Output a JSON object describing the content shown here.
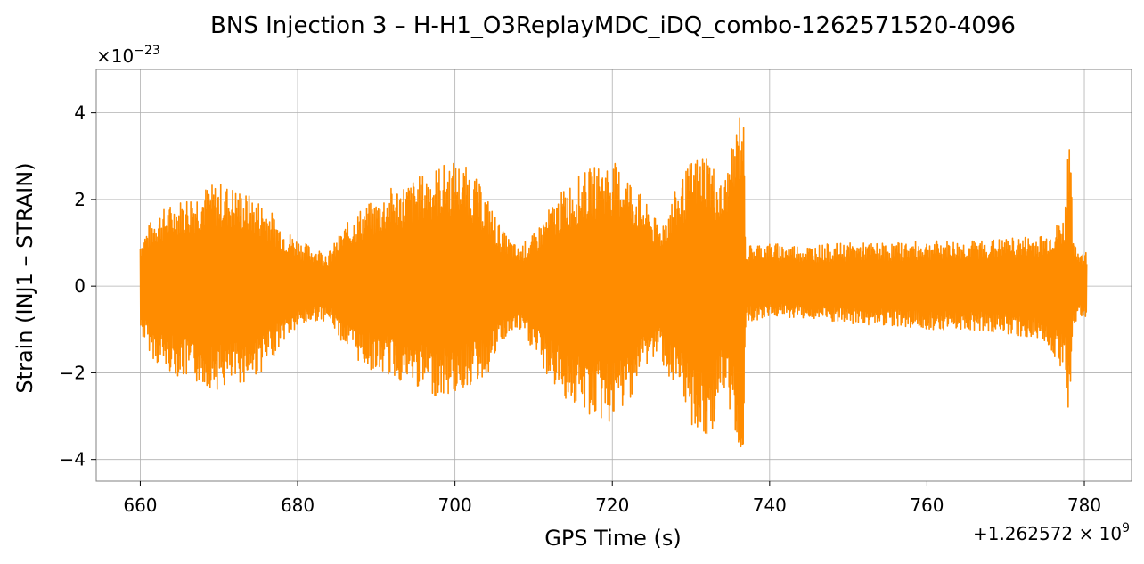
{
  "chart_data": {
    "type": "line",
    "title": "BNS Injection 3 – H-H1_O3ReplayMDC_iDQ_combo-1262571520-4096",
    "xlabel": "GPS Time (s)",
    "ylabel": "Strain (INJ1 – STRAIN)",
    "x_offset_label": "+1.262572",
    "x_offset_exp": "9",
    "y_multiplier_label": "10",
    "y_multiplier_exp": "−23",
    "xlim": [
      654.4,
      786.0
    ],
    "ylim": [
      -4.5,
      5.0
    ],
    "x_ticks": [
      660,
      680,
      700,
      720,
      740,
      760,
      780
    ],
    "x_tick_labels": [
      "660",
      "680",
      "700",
      "720",
      "740",
      "760",
      "780"
    ],
    "y_ticks": [
      -4,
      -2,
      0,
      2,
      4
    ],
    "y_tick_labels": [
      "−4",
      "−2",
      "0",
      "2",
      "4"
    ],
    "grid": true,
    "color": "#ff8c00",
    "series": [
      {
        "x_range": [
          660.0,
          780.3
        ],
        "envelope": {
          "x": [
            660.0,
            662,
            664,
            666,
            668,
            670,
            672,
            674,
            676,
            678,
            680,
            682,
            684,
            686,
            688,
            690,
            692,
            694,
            696,
            698,
            700,
            702,
            704,
            706,
            708,
            710,
            712,
            714,
            716,
            718,
            720,
            722,
            724,
            726,
            728,
            730,
            732,
            734,
            735.5,
            736.6,
            737.0,
            738,
            740,
            745,
            750,
            755,
            760,
            765,
            770,
            775,
            777.5,
            778.2,
            778.5,
            779,
            780.3
          ],
          "upper": [
            1.1,
            1.7,
            1.9,
            2.1,
            2.3,
            2.4,
            2.3,
            2.1,
            1.9,
            1.4,
            1.1,
            0.9,
            0.8,
            1.4,
            1.8,
            2.0,
            2.3,
            2.4,
            2.6,
            2.8,
            2.9,
            2.7,
            2.1,
            1.3,
            0.9,
            1.2,
            1.8,
            2.3,
            2.6,
            2.8,
            2.9,
            2.6,
            2.0,
            1.4,
            2.2,
            2.9,
            3.2,
            2.3,
            3.4,
            4.6,
            0.9,
            1.0,
            1.0,
            0.95,
            1.0,
            1.0,
            1.05,
            1.05,
            1.1,
            1.2,
            1.6,
            4.5,
            1.0,
            0.9,
            0.8
          ],
          "lower": [
            -1.1,
            -1.8,
            -2.0,
            -2.2,
            -2.3,
            -2.4,
            -2.3,
            -2.2,
            -1.9,
            -1.3,
            -1.0,
            -0.8,
            -0.8,
            -1.4,
            -1.8,
            -2.0,
            -2.1,
            -2.3,
            -2.4,
            -2.6,
            -2.5,
            -2.3,
            -2.1,
            -1.3,
            -1.0,
            -1.5,
            -2.2,
            -2.6,
            -2.9,
            -3.1,
            -3.2,
            -2.7,
            -1.9,
            -1.6,
            -2.5,
            -3.2,
            -3.8,
            -2.5,
            -3.3,
            -4.1,
            -0.8,
            -0.8,
            -0.7,
            -0.75,
            -0.9,
            -0.9,
            -1.0,
            -1.0,
            -1.1,
            -1.3,
            -2.0,
            -3.5,
            -0.9,
            -0.8,
            -0.7
          ]
        }
      }
    ]
  }
}
